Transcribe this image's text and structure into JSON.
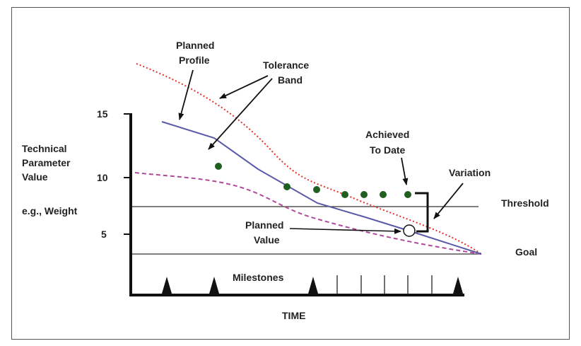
{
  "labels": {
    "planned_profile": [
      "Planned",
      "Profile"
    ],
    "tolerance_band": [
      "Tolerance",
      "Band"
    ],
    "achieved_to_date": [
      "Achieved",
      "To Date"
    ],
    "variation": "Variation",
    "threshold": "Threshold",
    "goal": "Goal",
    "planned_value": [
      "Planned",
      "Value"
    ],
    "milestones": "Milestones",
    "time": "TIME",
    "y_axis_label": [
      "Technical",
      "Parameter",
      "Value"
    ],
    "example": "e.g., Weight"
  },
  "y_ticks": [
    "15",
    "10",
    "5"
  ],
  "colors": {
    "planned_profile": "#5a5aa8",
    "upper_tolerance": "#e8302a",
    "lower_tolerance": "#b04a9a",
    "achieved_points": "#1f5f1f",
    "axis": "#111111",
    "reference_lines": "#333333"
  },
  "series": {
    "achieved_to_date": [
      11.0,
      9.2,
      8.9,
      8.5,
      8.5,
      8.5,
      8.5
    ],
    "planned_value": 5.2,
    "threshold": 7.5,
    "goal": 3.3
  }
}
